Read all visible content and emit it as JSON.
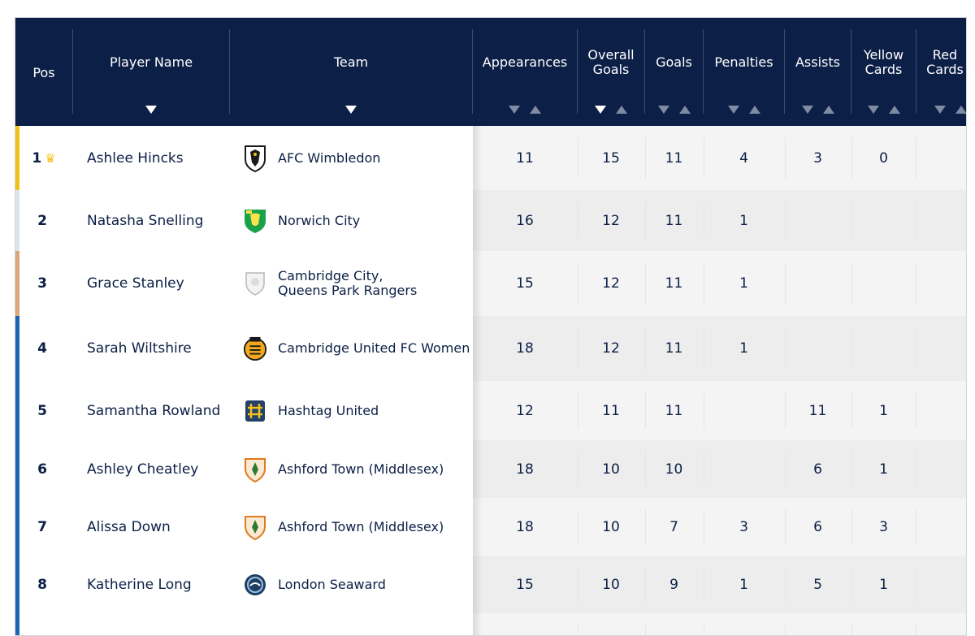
{
  "header": {
    "pos": "Pos",
    "player": "Player Name",
    "team": "Team",
    "appearances": "Appearances",
    "overall_goals_l1": "Overall",
    "overall_goals_l2": "Goals",
    "goals": "Goals",
    "penalties": "Penalties",
    "assists": "Assists",
    "yellow_l1": "Yellow",
    "yellow_l2": "Cards",
    "red_l1": "Red",
    "red_l2": "Cards"
  },
  "colors": {
    "header_bg": "#0c1f47",
    "gold": "#f2c21b",
    "silver": "#dde3ea",
    "bronze": "#d8a77a",
    "blue": "#1e64b4"
  },
  "rows": [
    {
      "pos": "1",
      "crown": "♛",
      "player": "Ashlee Hincks",
      "team_l1": "AFC Wimbledon",
      "team_l2": "",
      "badge": "afc-wimbledon-badge",
      "app": "11",
      "og": "15",
      "goals": "11",
      "pen": "4",
      "ast": "3",
      "yel": "0",
      "red": ""
    },
    {
      "pos": "2",
      "crown": "",
      "player": "Natasha Snelling",
      "team_l1": "Norwich City",
      "team_l2": "",
      "badge": "norwich-city-badge",
      "app": "16",
      "og": "12",
      "goals": "11",
      "pen": "1",
      "ast": "",
      "yel": "",
      "red": ""
    },
    {
      "pos": "3",
      "crown": "",
      "player": "Grace Stanley",
      "team_l1": "Cambridge City,",
      "team_l2": "Queens Park Rangers",
      "badge": "generic-shield-badge",
      "app": "15",
      "og": "12",
      "goals": "11",
      "pen": "1",
      "ast": "",
      "yel": "",
      "red": ""
    },
    {
      "pos": "4",
      "crown": "",
      "player": "Sarah Wiltshire",
      "team_l1": "Cambridge United FC Women",
      "team_l2": "",
      "badge": "cambridge-united-badge",
      "app": "18",
      "og": "12",
      "goals": "11",
      "pen": "1",
      "ast": "",
      "yel": "",
      "red": ""
    },
    {
      "pos": "5",
      "crown": "",
      "player": "Samantha Rowland",
      "team_l1": "Hashtag United",
      "team_l2": "",
      "badge": "hashtag-united-badge",
      "app": "12",
      "og": "11",
      "goals": "11",
      "pen": "",
      "ast": "11",
      "yel": "1",
      "red": ""
    },
    {
      "pos": "6",
      "crown": "",
      "player": "Ashley Cheatley",
      "team_l1": "Ashford Town (Middlesex)",
      "team_l2": "",
      "badge": "ashford-town-badge",
      "app": "18",
      "og": "10",
      "goals": "10",
      "pen": "",
      "ast": "6",
      "yel": "1",
      "red": ""
    },
    {
      "pos": "7",
      "crown": "",
      "player": "Alissa Down",
      "team_l1": "Ashford Town (Middlesex)",
      "team_l2": "",
      "badge": "ashford-town-badge",
      "app": "18",
      "og": "10",
      "goals": "7",
      "pen": "3",
      "ast": "6",
      "yel": "3",
      "red": ""
    },
    {
      "pos": "8",
      "crown": "",
      "player": "Katherine Long",
      "team_l1": "London Seaward",
      "team_l2": "",
      "badge": "london-seaward-badge",
      "app": "15",
      "og": "10",
      "goals": "9",
      "pen": "1",
      "ast": "5",
      "yel": "1",
      "red": ""
    },
    {
      "pos": "",
      "crown": "",
      "player": "",
      "team_l1": "",
      "team_l2": "",
      "badge": "",
      "app": "",
      "og": "",
      "goals": "",
      "pen": "",
      "ast": "",
      "yel": "",
      "red": ""
    }
  ]
}
